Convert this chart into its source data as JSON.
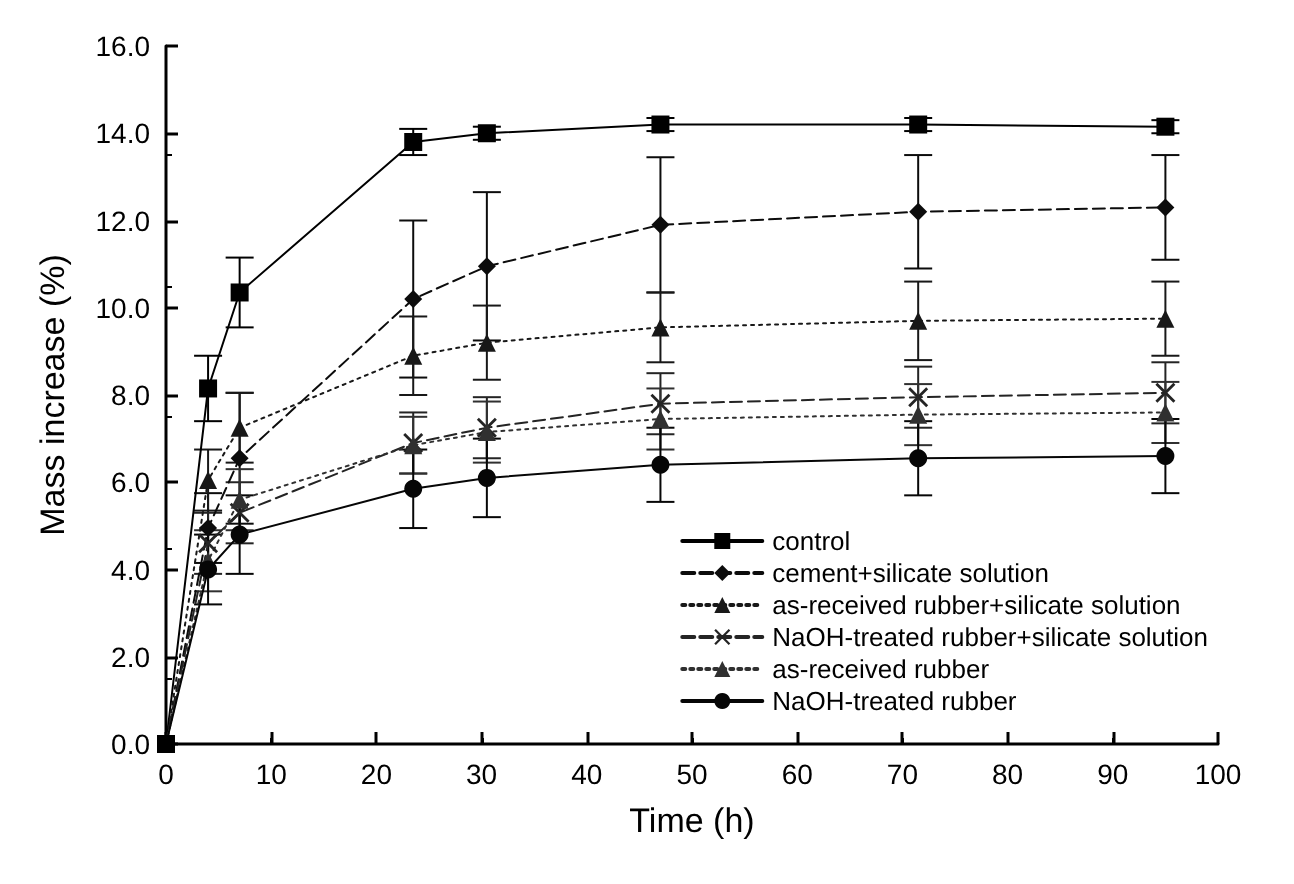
{
  "chart_data": {
    "type": "line",
    "xlabel": "Time (h)",
    "ylabel": "Mass increase (%)",
    "x": [
      0,
      4,
      7,
      23.5,
      30.5,
      47,
      71.5,
      95
    ],
    "xlim": [
      0,
      100
    ],
    "xticks": [
      0,
      10,
      20,
      30,
      40,
      50,
      60,
      70,
      80,
      90,
      100
    ],
    "ylim": [
      0,
      16
    ],
    "yticks": [
      {
        "value": 0,
        "label": "0.0"
      },
      {
        "value": 2,
        "label": "2.0"
      },
      {
        "value": 4,
        "label": "4.0"
      },
      {
        "value": 6,
        "label": "6.0"
      },
      {
        "value": 8,
        "label": "8.0"
      },
      {
        "value": 10,
        "label": "10.0"
      },
      {
        "value": 12,
        "label": "12.0"
      },
      {
        "value": 14,
        "label": "14.0"
      },
      {
        "value": 16,
        "label": "16.0"
      }
    ],
    "grid": false,
    "legend": "bottom right",
    "series": [
      {
        "name": "control",
        "color": "#000000",
        "marker": "square",
        "line_style": "solid",
        "values": [
          0,
          8.15,
          10.35,
          13.8,
          14.0,
          14.2,
          14.2,
          14.15
        ],
        "errors": [
          null,
          0.75,
          0.8,
          0.3,
          0.15,
          0.15,
          0.15,
          0.15
        ]
      },
      {
        "name": "cement+silicate solution",
        "color": "#0c0c0c",
        "marker": "diamond",
        "line_style": "dashed",
        "values": [
          0,
          4.95,
          6.55,
          10.2,
          10.95,
          11.9,
          12.2,
          12.3
        ],
        "errors": [
          null,
          0.8,
          1.5,
          1.8,
          1.7,
          1.55,
          1.3,
          1.2
        ]
      },
      {
        "name": "as-received rubber+silicate solution",
        "color": "#181818",
        "marker": "triangle",
        "line_style": "dotted",
        "values": [
          0,
          6.05,
          7.25,
          8.9,
          9.2,
          9.55,
          9.7,
          9.75
        ],
        "errors": [
          null,
          0.7,
          0.8,
          0.9,
          0.85,
          0.8,
          0.9,
          0.85
        ]
      },
      {
        "name": "NaOH-treated rubber+silicate solution",
        "color": "#242424",
        "marker": "cross",
        "line_style": "dashed",
        "values": [
          0,
          4.6,
          5.3,
          6.9,
          7.25,
          7.8,
          7.95,
          8.05
        ],
        "errors": [
          null,
          0.7,
          0.7,
          0.7,
          0.7,
          0.7,
          0.7,
          0.7
        ]
      },
      {
        "name": "as-received rubber",
        "color": "#303030",
        "marker": "triangle",
        "line_style": "dotted",
        "values": [
          0,
          4.2,
          5.6,
          6.85,
          7.15,
          7.45,
          7.55,
          7.6
        ],
        "errors": [
          null,
          0.7,
          0.7,
          0.65,
          0.7,
          0.7,
          0.7,
          0.7
        ]
      },
      {
        "name": "NaOH-treated rubber",
        "color": "#060606",
        "marker": "circle",
        "line_style": "solid",
        "values": [
          0,
          4.0,
          4.8,
          5.85,
          6.1,
          6.4,
          6.55,
          6.6
        ],
        "errors": [
          null,
          0.8,
          0.9,
          0.9,
          0.9,
          0.85,
          0.85,
          0.85
        ]
      }
    ]
  }
}
